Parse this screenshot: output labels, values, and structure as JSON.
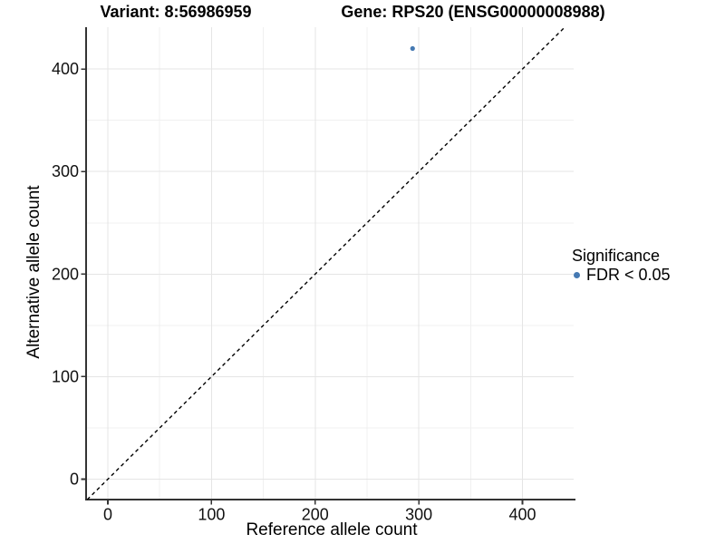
{
  "chart_data": {
    "type": "scatter",
    "titles": [
      "Variant: 8:56986959",
      "Gene: RPS20 (ENSG00000008988)"
    ],
    "xlabel": "Reference allele count",
    "ylabel": "Alternative allele count",
    "xlim": [
      -21,
      449.4
    ],
    "ylim": [
      -19.9,
      440.8
    ],
    "x_ticks": [
      0,
      100,
      200,
      300,
      400
    ],
    "y_ticks": [
      0,
      100,
      200,
      300,
      400
    ],
    "minor_grid_step": 50,
    "grid": true,
    "points": [
      {
        "x": 294,
        "y": 420,
        "series": "FDR < 0.05"
      }
    ],
    "identity_line": {
      "slope": 1,
      "intercept": 0,
      "style": "dashed",
      "color": "#000000"
    },
    "legend": {
      "position": "right",
      "title": "Significance",
      "entries": [
        {
          "label": "FDR < 0.05",
          "color": "#4579b2"
        }
      ]
    },
    "colors": {
      "point": "#4579b2",
      "grid_major": "#e5e5e5",
      "grid_minor": "#f0f0f0",
      "axis_line": "#333333",
      "tick_text": "#111111"
    }
  }
}
